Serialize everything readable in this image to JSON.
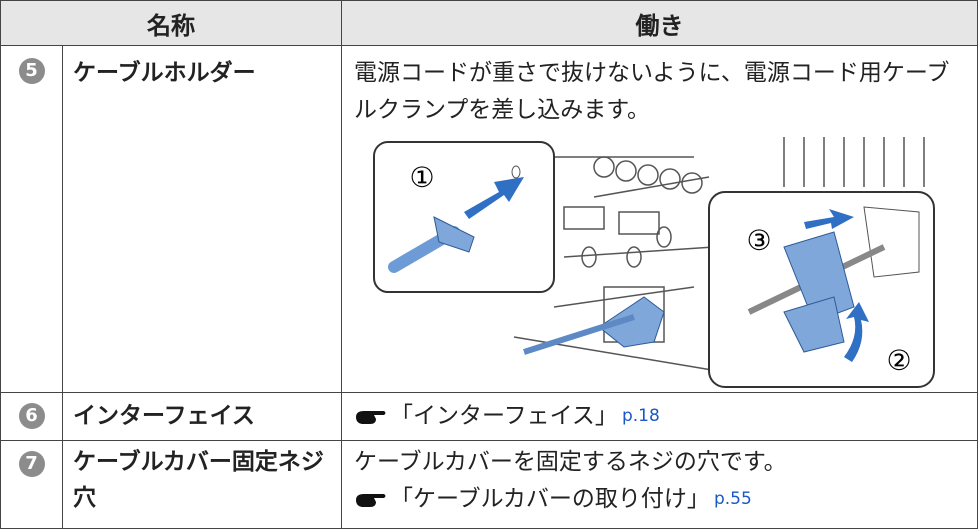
{
  "table": {
    "header": [
      "名称",
      "働き"
    ],
    "rows": [
      {
        "number": "5",
        "name": "ケーブルホルダー",
        "description": "電源コードが重さで抜けないように、電源コード用ケーブルクランプを差し込みます。",
        "figure_labels": [
          "①",
          "②",
          "③"
        ]
      },
      {
        "number": "6",
        "name": "インターフェイス",
        "ref": {
          "text": "「インターフェイス」",
          "page": "p.18"
        }
      },
      {
        "number": "7",
        "name": "ケーブルカバー固定ネジ穴",
        "description": "ケーブルカバーを固定するネジの穴です。",
        "ref": {
          "text": "「ケーブルカバーの取り付け」",
          "page": "p.55"
        }
      }
    ]
  }
}
